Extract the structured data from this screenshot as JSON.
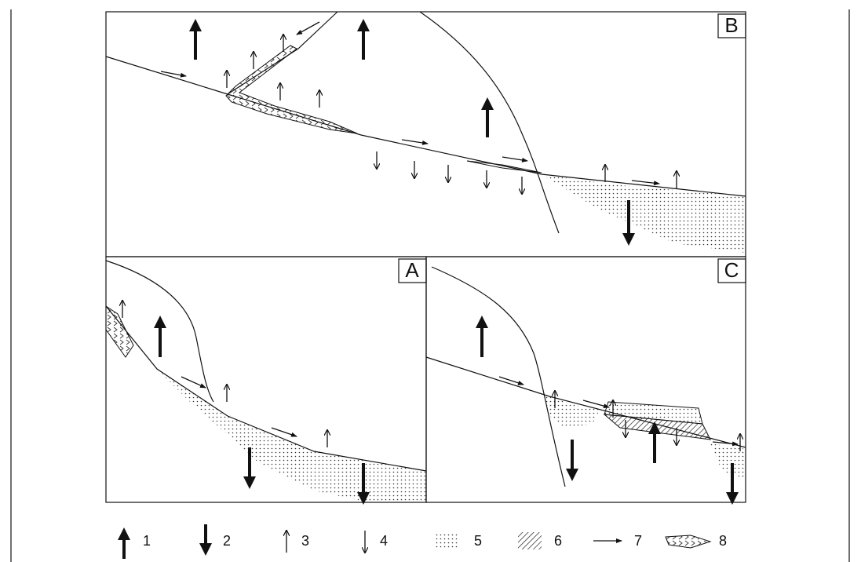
{
  "panels": [
    {
      "label": "B"
    },
    {
      "label": "A"
    },
    {
      "label": "C"
    }
  ],
  "legend": [
    {
      "label": "1"
    },
    {
      "label": "2"
    },
    {
      "label": "3"
    },
    {
      "label": "4"
    },
    {
      "label": "5"
    },
    {
      "label": "6"
    },
    {
      "label": "7"
    },
    {
      "label": "8"
    }
  ]
}
